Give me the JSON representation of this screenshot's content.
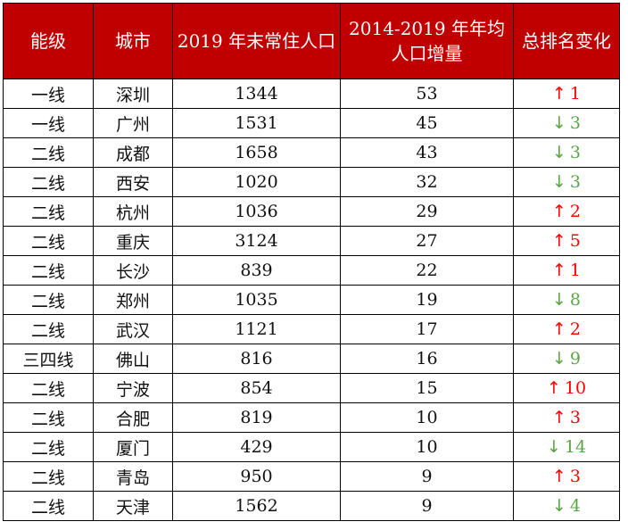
{
  "headers": [
    "能级",
    "城市",
    "2019 年末常住人口",
    "2014-2019 年年均人口增量",
    "总排名变化"
  ],
  "rows": [
    {
      "tier": "一线",
      "city": "深圳",
      "population": "1344",
      "increase": "53",
      "dir": "up",
      "change": "1"
    },
    {
      "tier": "一线",
      "city": "广州",
      "population": "1531",
      "increase": "45",
      "dir": "down",
      "change": "3"
    },
    {
      "tier": "二线",
      "city": "成都",
      "population": "1658",
      "increase": "43",
      "dir": "down",
      "change": "3"
    },
    {
      "tier": "二线",
      "city": "西安",
      "population": "1020",
      "increase": "32",
      "dir": "down",
      "change": "3"
    },
    {
      "tier": "二线",
      "city": "杭州",
      "population": "1036",
      "increase": "29",
      "dir": "up",
      "change": "2"
    },
    {
      "tier": "二线",
      "city": "重庆",
      "population": "3124",
      "increase": "27",
      "dir": "up",
      "change": "5"
    },
    {
      "tier": "二线",
      "city": "长沙",
      "population": "839",
      "increase": "22",
      "dir": "up",
      "change": "1"
    },
    {
      "tier": "二线",
      "city": "郑州",
      "population": "1035",
      "increase": "19",
      "dir": "down",
      "change": "8"
    },
    {
      "tier": "二线",
      "city": "武汉",
      "population": "1121",
      "increase": "17",
      "dir": "up",
      "change": "2"
    },
    {
      "tier": "三四线",
      "city": "佛山",
      "population": "816",
      "increase": "16",
      "dir": "down",
      "change": "9"
    },
    {
      "tier": "二线",
      "city": "宁波",
      "population": "854",
      "increase": "15",
      "dir": "up",
      "change": "10"
    },
    {
      "tier": "二线",
      "city": "合肥",
      "population": "819",
      "increase": "10",
      "dir": "up",
      "change": "3"
    },
    {
      "tier": "二线",
      "city": "厦门",
      "population": "429",
      "increase": "10",
      "dir": "down",
      "change": "14"
    },
    {
      "tier": "二线",
      "city": "青岛",
      "population": "950",
      "increase": "9",
      "dir": "up",
      "change": "3"
    },
    {
      "tier": "二线",
      "city": "天津",
      "population": "1562",
      "increase": "9",
      "dir": "down",
      "change": "4"
    }
  ],
  "arrows": {
    "up": "↑",
    "down": "↓"
  },
  "colors": {
    "header_bg": "#c00000",
    "up": "#ff0000",
    "down": "#5aa545"
  }
}
